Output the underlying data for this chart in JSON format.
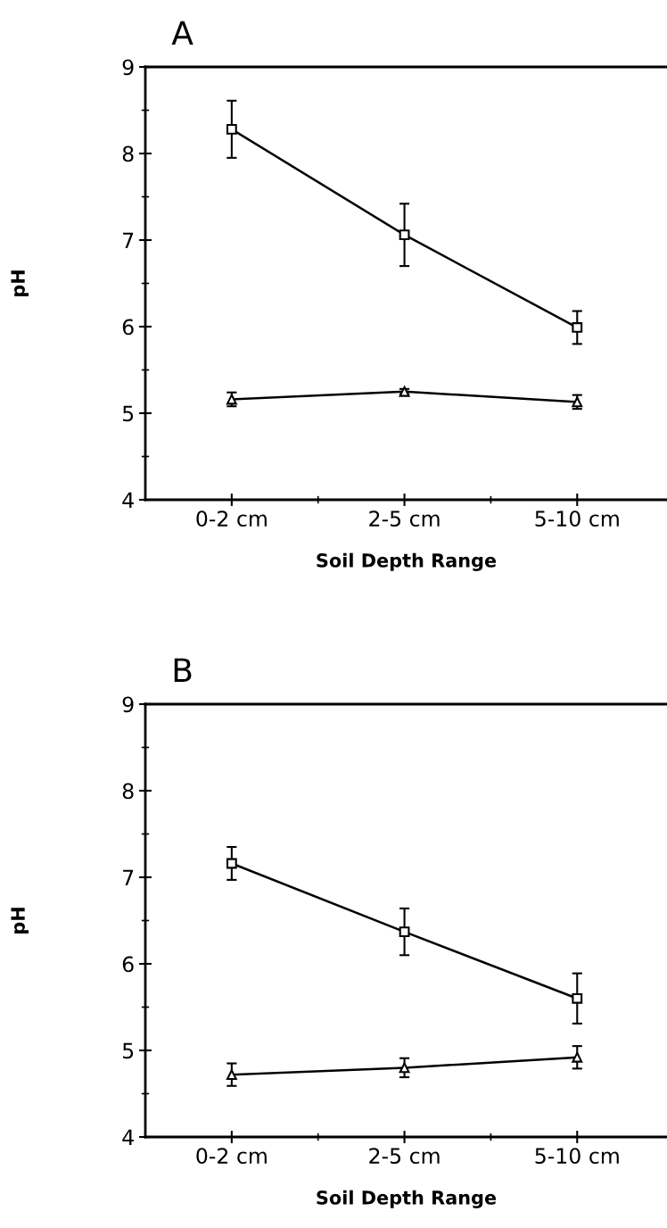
{
  "chart_data": [
    {
      "type": "line",
      "title": "A",
      "xlabel": "Soil Depth Range",
      "ylabel": "pH",
      "categories": [
        "0-2 cm",
        "2-5 cm",
        "5-10 cm"
      ],
      "ylim": [
        4,
        9
      ],
      "yticks": [
        4,
        5,
        6,
        7,
        8,
        9
      ],
      "grid": false,
      "legend": false,
      "series": [
        {
          "color": "#000000",
          "marker": "square",
          "values": [
            8.28,
            7.06,
            5.99
          ],
          "errors": [
            0.33,
            0.36,
            0.19
          ]
        },
        {
          "color": "#000000",
          "marker": "triangle",
          "values": [
            5.16,
            5.25,
            5.13
          ],
          "errors": [
            0.08,
            0.03,
            0.08
          ]
        }
      ]
    },
    {
      "type": "line",
      "title": "B",
      "xlabel": "Soil Depth Range",
      "ylabel": "pH",
      "categories": [
        "0-2 cm",
        "2-5 cm",
        "5-10 cm"
      ],
      "ylim": [
        4,
        9
      ],
      "yticks": [
        4,
        5,
        6,
        7,
        8,
        9
      ],
      "grid": false,
      "legend": false,
      "series": [
        {
          "color": "#000000",
          "marker": "square",
          "values": [
            7.16,
            6.37,
            5.6
          ],
          "errors": [
            0.19,
            0.27,
            0.29
          ]
        },
        {
          "color": "#000000",
          "marker": "triangle",
          "values": [
            4.72,
            4.8,
            4.92
          ],
          "errors": [
            0.13,
            0.11,
            0.13
          ]
        }
      ]
    }
  ]
}
